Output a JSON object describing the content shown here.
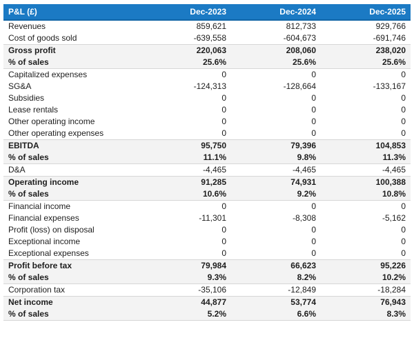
{
  "colors": {
    "header_bg": "#1b7ac4",
    "header_text": "#ffffff",
    "header_edge": "#1266a7",
    "section_row_bg": "#f3f3f3",
    "section_border": "#d6d6d6",
    "body_text": "#1d1d1d"
  },
  "table": {
    "title": "P&L (£)",
    "columns": [
      "Dec-2023",
      "Dec-2024",
      "Dec-2025"
    ],
    "rows": [
      {
        "label": "Revenues",
        "values": [
          "859,621",
          "812,733",
          "929,766"
        ],
        "emphasis": false
      },
      {
        "label": "Cost of goods sold",
        "values": [
          "-639,558",
          "-604,673",
          "-691,746"
        ],
        "emphasis": false
      },
      {
        "label": "Gross profit",
        "values": [
          "220,063",
          "208,060",
          "238,020"
        ],
        "emphasis": true
      },
      {
        "label": "% of sales",
        "values": [
          "25.6%",
          "25.6%",
          "25.6%"
        ],
        "emphasis": true
      },
      {
        "label": "Capitalized expenses",
        "values": [
          "0",
          "0",
          "0"
        ],
        "emphasis": false
      },
      {
        "label": "SG&A",
        "values": [
          "-124,313",
          "-128,664",
          "-133,167"
        ],
        "emphasis": false
      },
      {
        "label": "Subsidies",
        "values": [
          "0",
          "0",
          "0"
        ],
        "emphasis": false
      },
      {
        "label": "Lease rentals",
        "values": [
          "0",
          "0",
          "0"
        ],
        "emphasis": false
      },
      {
        "label": "Other operating income",
        "values": [
          "0",
          "0",
          "0"
        ],
        "emphasis": false
      },
      {
        "label": "Other operating expenses",
        "values": [
          "0",
          "0",
          "0"
        ],
        "emphasis": false
      },
      {
        "label": "EBITDA",
        "values": [
          "95,750",
          "79,396",
          "104,853"
        ],
        "emphasis": true
      },
      {
        "label": "% of sales",
        "values": [
          "11.1%",
          "9.8%",
          "11.3%"
        ],
        "emphasis": true
      },
      {
        "label": "D&A",
        "values": [
          "-4,465",
          "-4,465",
          "-4,465"
        ],
        "emphasis": false
      },
      {
        "label": "Operating income",
        "values": [
          "91,285",
          "74,931",
          "100,388"
        ],
        "emphasis": true
      },
      {
        "label": "% of sales",
        "values": [
          "10.6%",
          "9.2%",
          "10.8%"
        ],
        "emphasis": true
      },
      {
        "label": "Financial income",
        "values": [
          "0",
          "0",
          "0"
        ],
        "emphasis": false
      },
      {
        "label": "Financial expenses",
        "values": [
          "-11,301",
          "-8,308",
          "-5,162"
        ],
        "emphasis": false
      },
      {
        "label": "Profit (loss) on disposal",
        "values": [
          "0",
          "0",
          "0"
        ],
        "emphasis": false
      },
      {
        "label": "Exceptional income",
        "values": [
          "0",
          "0",
          "0"
        ],
        "emphasis": false
      },
      {
        "label": "Exceptional expenses",
        "values": [
          "0",
          "0",
          "0"
        ],
        "emphasis": false
      },
      {
        "label": "Profit before tax",
        "values": [
          "79,984",
          "66,623",
          "95,226"
        ],
        "emphasis": true
      },
      {
        "label": "% of sales",
        "values": [
          "9.3%",
          "8.2%",
          "10.2%"
        ],
        "emphasis": true
      },
      {
        "label": "Corporation tax",
        "values": [
          "-35,106",
          "-12,849",
          "-18,284"
        ],
        "emphasis": false
      },
      {
        "label": "Net income",
        "values": [
          "44,877",
          "53,774",
          "76,943"
        ],
        "emphasis": true
      },
      {
        "label": "% of sales",
        "values": [
          "5.2%",
          "6.6%",
          "8.3%"
        ],
        "emphasis": true
      }
    ]
  }
}
